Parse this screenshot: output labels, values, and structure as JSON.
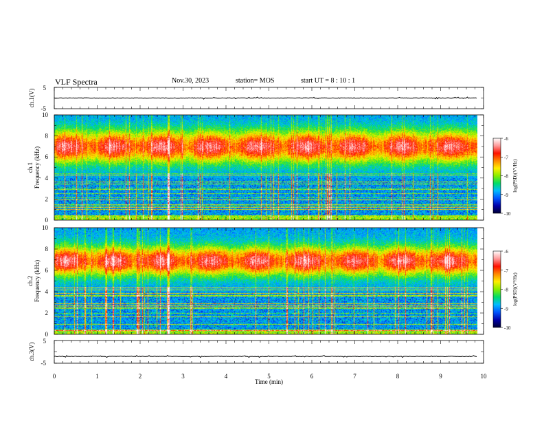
{
  "header": {
    "title": "VLF Spectra",
    "date": "Nov.30, 2023",
    "station": "station= MOS",
    "start": "start  UT =   8 : 10 : 1"
  },
  "chart_data": [
    {
      "type": "line",
      "name": "ch1-waveform",
      "ylabel": "ch.1(V)",
      "yticks": [
        "5",
        "-5"
      ],
      "ylim": [
        -5,
        5
      ],
      "xlim": [
        0,
        10
      ],
      "level": 0,
      "ends_at_min": 9.85
    },
    {
      "type": "heatmap",
      "name": "ch1-spectrogram",
      "ylabel": "ch.1\nFrequency (kHz)",
      "xlim": [
        0,
        10
      ],
      "ylim": [
        0,
        10
      ],
      "yticks": [
        0,
        2,
        4,
        6,
        8,
        10
      ],
      "ends_at_min": 9.85,
      "band_center_khz": 7.0,
      "band_halfwidth_khz": 1.9,
      "colorbar": {
        "label": "log(PSD)(V²/Hz)",
        "ticks": [
          "-6",
          "-7",
          "-8",
          "-9",
          "-10"
        ],
        "range": [
          -10,
          -6
        ]
      }
    },
    {
      "type": "heatmap",
      "name": "ch2-spectrogram",
      "ylabel": "ch.2\nFrequency (kHz)",
      "xlim": [
        0,
        10
      ],
      "ylim": [
        0,
        10
      ],
      "yticks": [
        0,
        2,
        4,
        6,
        8,
        10
      ],
      "ends_at_min": 9.85,
      "band_center_khz": 6.9,
      "band_halfwidth_khz": 1.7,
      "colorbar": {
        "label": "log(PSD)(V²/Hz)",
        "ticks": [
          "-6",
          "-7",
          "-8",
          "-9",
          "-10"
        ],
        "range": [
          -10,
          -6
        ]
      }
    },
    {
      "type": "line",
      "name": "ch3-waveform",
      "ylabel": "ch.3(V)",
      "yticks": [
        "5",
        "-5"
      ],
      "ylim": [
        -5,
        5
      ],
      "xlim": [
        0,
        10
      ],
      "level": -2,
      "ends_at_min": 9.85
    }
  ],
  "xaxis": {
    "label": "Time  (min)",
    "ticks": [
      "0",
      "1",
      "2",
      "3",
      "4",
      "5",
      "6",
      "7",
      "8",
      "9",
      "10"
    ]
  },
  "colors": {
    "stops": [
      "#000033",
      "#0000aa",
      "#0055ff",
      "#00bbff",
      "#00dd66",
      "#88ee00",
      "#ffee00",
      "#ff8800",
      "#ff1100",
      "#ff9999",
      "#ffffff"
    ]
  }
}
